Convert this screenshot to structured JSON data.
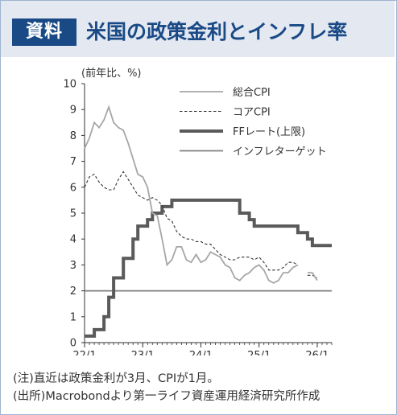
{
  "header": {
    "badge": "資料",
    "title": "米国の政策金利とインフレ率"
  },
  "notes": [
    "(注)直近は政策金利が3月、CPIが1月。",
    "(出所)Macrobondより第一ライフ資産運用経済研究所作成"
  ],
  "colors": {
    "brand": "#1a4a86",
    "header_bg": "#e3e8f1",
    "cpi": "#a6a6a6",
    "core_cpi": "#333333",
    "ff_rate": "#5a5a5a",
    "target": "#7f7f7f"
  },
  "chart_data": {
    "type": "line",
    "ylabel": "(前年比、%)",
    "ylim": [
      0,
      10
    ],
    "yticks": [
      0,
      1,
      2,
      3,
      4,
      5,
      6,
      7,
      8,
      9,
      10
    ],
    "xlim": [
      2022.0,
      2026.25
    ],
    "xticks": [
      {
        "v": 2022,
        "label": "22/1"
      },
      {
        "v": 2023,
        "label": "23/1"
      },
      {
        "v": 2024,
        "label": "24/1"
      },
      {
        "v": 2025,
        "label": "25/1"
      },
      {
        "v": 2026,
        "label": "26/1"
      }
    ],
    "legend_position": "top-right",
    "series": [
      {
        "name": "総合CPI",
        "style": "solid-thin",
        "points": [
          [
            2022.0,
            7.5
          ],
          [
            2022.083,
            7.9
          ],
          [
            2022.167,
            8.5
          ],
          [
            2022.25,
            8.3
          ],
          [
            2022.333,
            8.6
          ],
          [
            2022.417,
            9.1
          ],
          [
            2022.5,
            8.5
          ],
          [
            2022.583,
            8.3
          ],
          [
            2022.667,
            8.2
          ],
          [
            2022.75,
            7.7
          ],
          [
            2022.833,
            7.1
          ],
          [
            2022.917,
            6.5
          ],
          [
            2023.0,
            6.4
          ],
          [
            2023.083,
            6.0
          ],
          [
            2023.167,
            5.0
          ],
          [
            2023.25,
            4.9
          ],
          [
            2023.333,
            4.0
          ],
          [
            2023.417,
            3.0
          ],
          [
            2023.5,
            3.2
          ],
          [
            2023.583,
            3.7
          ],
          [
            2023.667,
            3.7
          ],
          [
            2023.75,
            3.2
          ],
          [
            2023.833,
            3.1
          ],
          [
            2023.917,
            3.4
          ],
          [
            2024.0,
            3.1
          ],
          [
            2024.083,
            3.2
          ],
          [
            2024.167,
            3.5
          ],
          [
            2024.25,
            3.4
          ],
          [
            2024.333,
            3.3
          ],
          [
            2024.417,
            3.0
          ],
          [
            2024.5,
            2.9
          ],
          [
            2024.583,
            2.5
          ],
          [
            2024.667,
            2.4
          ],
          [
            2024.75,
            2.6
          ],
          [
            2024.833,
            2.7
          ],
          [
            2024.917,
            2.9
          ],
          [
            2025.0,
            3.0
          ],
          [
            2025.083,
            2.8
          ],
          [
            2025.167,
            2.4
          ],
          [
            2025.25,
            2.3
          ],
          [
            2025.333,
            2.4
          ],
          [
            2025.417,
            2.7
          ],
          [
            2025.5,
            2.7
          ],
          [
            2025.583,
            2.9
          ],
          [
            2025.667,
            3.0
          ],
          [
            2025.75,
            null
          ],
          [
            2025.833,
            2.7
          ],
          [
            2025.917,
            2.7
          ],
          [
            2026.0,
            2.4
          ]
        ]
      },
      {
        "name": "コアCPI",
        "style": "dashed",
        "points": [
          [
            2022.0,
            6.0
          ],
          [
            2022.083,
            6.4
          ],
          [
            2022.167,
            6.5
          ],
          [
            2022.25,
            6.2
          ],
          [
            2022.333,
            6.0
          ],
          [
            2022.417,
            5.9
          ],
          [
            2022.5,
            5.9
          ],
          [
            2022.583,
            6.3
          ],
          [
            2022.667,
            6.6
          ],
          [
            2022.75,
            6.3
          ],
          [
            2022.833,
            6.0
          ],
          [
            2022.917,
            5.7
          ],
          [
            2023.0,
            5.6
          ],
          [
            2023.083,
            5.5
          ],
          [
            2023.167,
            5.6
          ],
          [
            2023.25,
            5.5
          ],
          [
            2023.333,
            5.3
          ],
          [
            2023.417,
            4.8
          ],
          [
            2023.5,
            4.7
          ],
          [
            2023.583,
            4.3
          ],
          [
            2023.667,
            4.1
          ],
          [
            2023.75,
            4.0
          ],
          [
            2023.833,
            4.0
          ],
          [
            2023.917,
            3.9
          ],
          [
            2024.0,
            3.9
          ],
          [
            2024.083,
            3.8
          ],
          [
            2024.167,
            3.8
          ],
          [
            2024.25,
            3.6
          ],
          [
            2024.333,
            3.4
          ],
          [
            2024.417,
            3.3
          ],
          [
            2024.5,
            3.2
          ],
          [
            2024.583,
            3.2
          ],
          [
            2024.667,
            3.3
          ],
          [
            2024.75,
            3.3
          ],
          [
            2024.833,
            3.3
          ],
          [
            2024.917,
            3.2
          ],
          [
            2025.0,
            3.3
          ],
          [
            2025.083,
            3.1
          ],
          [
            2025.167,
            2.8
          ],
          [
            2025.25,
            2.8
          ],
          [
            2025.333,
            2.8
          ],
          [
            2025.417,
            2.9
          ],
          [
            2025.5,
            3.1
          ],
          [
            2025.583,
            3.1
          ],
          [
            2025.667,
            3.0
          ],
          [
            2025.75,
            null
          ],
          [
            2025.833,
            2.6
          ],
          [
            2025.917,
            2.6
          ],
          [
            2026.0,
            2.5
          ]
        ]
      },
      {
        "name": "FFレート(上限)",
        "style": "step-thick",
        "points": [
          [
            2022.0,
            0.25
          ],
          [
            2022.167,
            0.5
          ],
          [
            2022.333,
            1.0
          ],
          [
            2022.417,
            1.75
          ],
          [
            2022.5,
            2.5
          ],
          [
            2022.667,
            3.25
          ],
          [
            2022.833,
            4.0
          ],
          [
            2022.917,
            4.5
          ],
          [
            2023.083,
            4.75
          ],
          [
            2023.167,
            5.0
          ],
          [
            2023.333,
            5.25
          ],
          [
            2023.5,
            5.5
          ],
          [
            2024.667,
            5.0
          ],
          [
            2024.833,
            4.75
          ],
          [
            2024.917,
            4.5
          ],
          [
            2025.667,
            4.25
          ],
          [
            2025.833,
            4.0
          ],
          [
            2025.917,
            3.75
          ],
          [
            2026.25,
            3.75
          ]
        ]
      },
      {
        "name": "インフレターゲット",
        "style": "flat",
        "points": [
          [
            2022.0,
            2.0
          ],
          [
            2026.25,
            2.0
          ]
        ]
      }
    ]
  }
}
